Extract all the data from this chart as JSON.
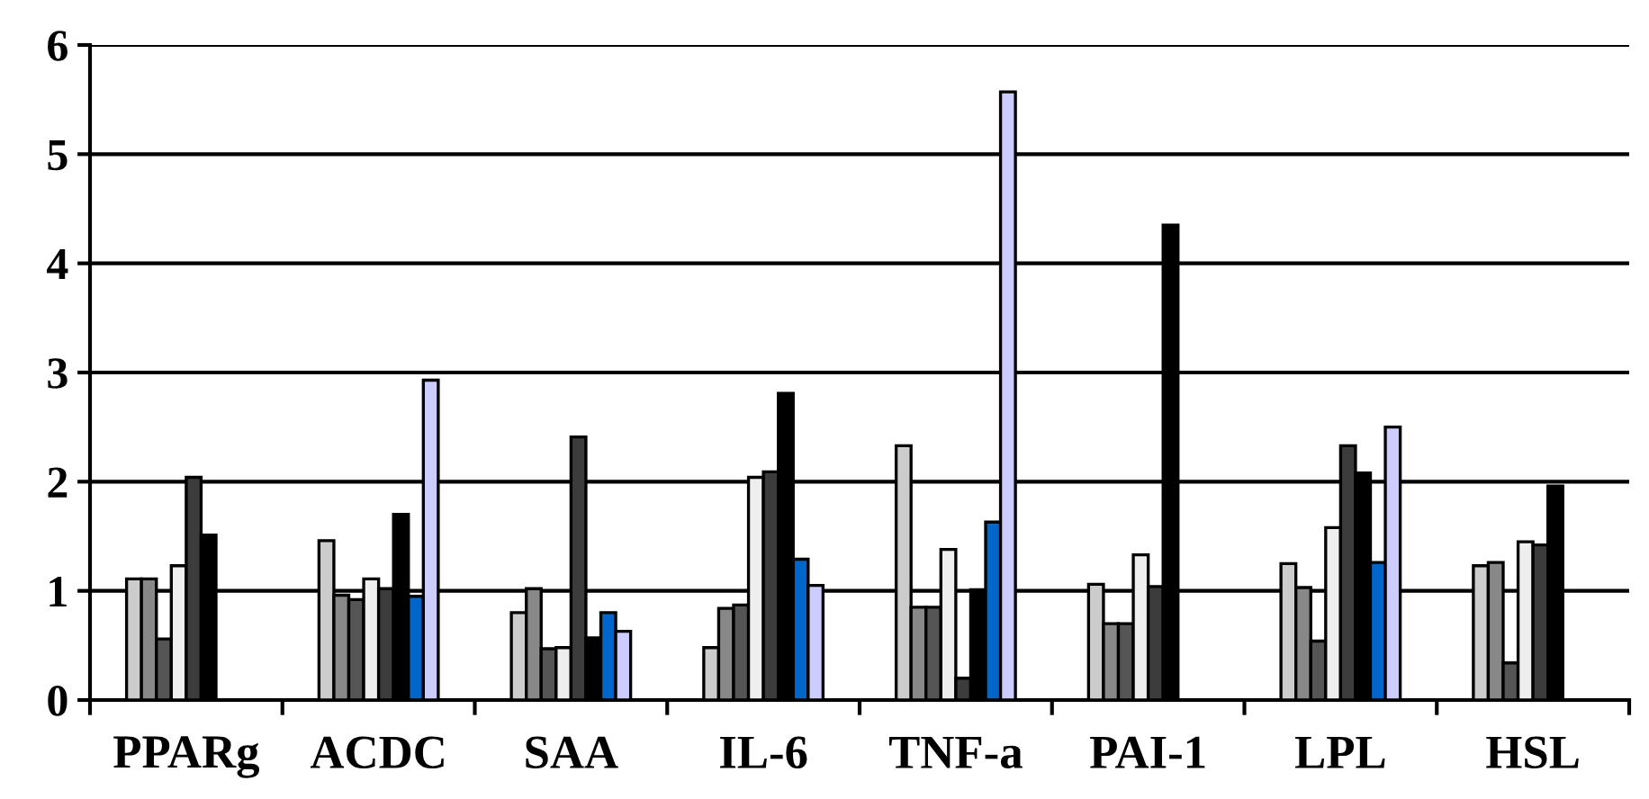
{
  "chart_data": {
    "type": "bar",
    "categories": [
      "PPARg",
      "ACDC",
      "SAA",
      "IL-6",
      "TNF-a",
      "PAI-1",
      "LPL",
      "HSL"
    ],
    "series": [
      {
        "color": "#cccccc",
        "values": [
          1.11,
          1.46,
          0.8,
          0.48,
          2.33,
          1.06,
          1.25,
          1.23
        ]
      },
      {
        "color": "#888888",
        "values": [
          1.11,
          0.96,
          1.02,
          0.84,
          0.85,
          0.7,
          1.03,
          1.26
        ]
      },
      {
        "color": "#555555",
        "values": [
          0.56,
          0.92,
          0.47,
          0.87,
          0.85,
          0.7,
          0.54,
          0.34
        ]
      },
      {
        "color": "#eeeeee",
        "values": [
          1.23,
          1.11,
          0.48,
          2.04,
          1.38,
          1.33,
          1.58,
          1.45
        ]
      },
      {
        "color": "#3c3c3c",
        "values": [
          2.04,
          1.02,
          2.41,
          2.09,
          0.2,
          1.04,
          2.33,
          1.42
        ]
      },
      {
        "color": "#000000",
        "values": [
          1.51,
          1.7,
          0.57,
          2.81,
          1.01,
          4.35,
          2.08,
          1.96
        ]
      },
      {
        "color": "#0066cc",
        "values": [
          null,
          0.95,
          0.8,
          1.29,
          1.63,
          null,
          1.26,
          null
        ]
      },
      {
        "color": "#ccccff",
        "values": [
          null,
          2.93,
          0.63,
          1.05,
          5.57,
          null,
          2.5,
          null
        ]
      }
    ],
    "ylim": [
      0,
      6
    ],
    "yticks": [
      0,
      1,
      2,
      3,
      4,
      5,
      6
    ],
    "grid": "y"
  }
}
